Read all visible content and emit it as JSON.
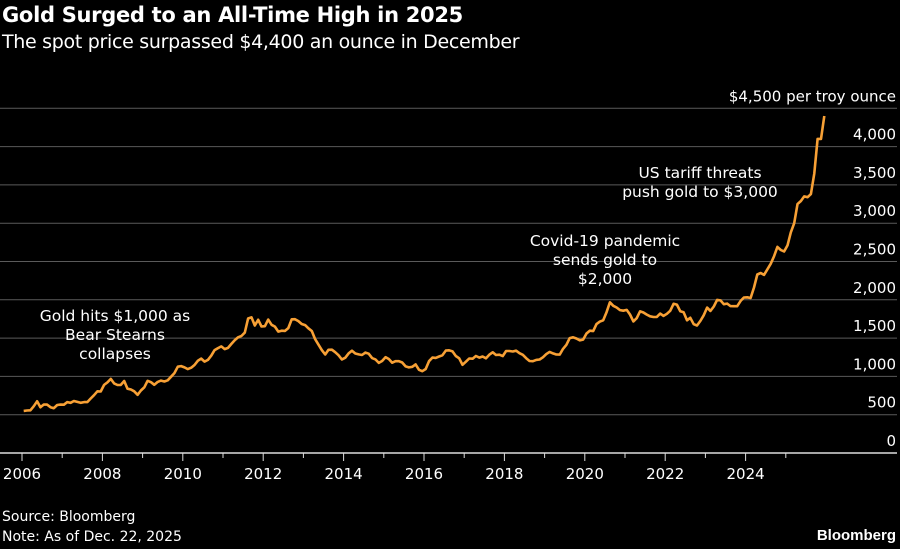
{
  "title": "Gold Surged to an All-Time High in 2025",
  "subtitle": "The spot price surpassed $4,400 an ounce in December",
  "source": "Source: Bloomberg",
  "note": "Note: As of Dec. 22, 2025",
  "logo": "Bloomberg",
  "chart_data": {
    "type": "line",
    "title": "Gold Surged to an All-Time High in 2025",
    "subtitle": "The spot price surpassed $4,400 an ounce in December",
    "ylabel": "$4,500 per troy ounce",
    "ylim": [
      0,
      4500
    ],
    "yticks": [
      0,
      500,
      1000,
      1500,
      2000,
      2500,
      3000,
      3500,
      4000,
      4500
    ],
    "ytick_labels": [
      "0",
      "500",
      "1,000",
      "1,500",
      "2,000",
      "2,500",
      "3,000",
      "3,500",
      "4,000",
      "$4,500 per troy ounce"
    ],
    "xlim": [
      2006,
      2026
    ],
    "xtick_labels": [
      "2006",
      "2008",
      "2010",
      "2012",
      "2014",
      "2016",
      "2018",
      "2020",
      "2022",
      "2024"
    ],
    "grid": true,
    "y_axis_position": "right",
    "line_color": "#f7a035",
    "series": [
      {
        "frequency": "monthly",
        "start": "2006-01",
        "values": [
          550,
          555,
          557,
          610,
          675,
          596,
          633,
          632,
          598,
          585,
          627,
          632,
          631,
          664,
          655,
          679,
          667,
          655,
          665,
          665,
          712,
          754,
          806,
          803,
          889,
          922,
          968,
          909,
          888,
          889,
          940,
          839,
          829,
          806,
          760,
          816,
          858,
          943,
          924,
          890,
          928,
          945,
          934,
          949,
          996,
          1043,
          1127,
          1134,
          1118,
          1095,
          1114,
          1149,
          1205,
          1232,
          1193,
          1215,
          1271,
          1343,
          1370,
          1391,
          1356,
          1372,
          1424,
          1473,
          1510,
          1528,
          1572,
          1756,
          1772,
          1665,
          1739,
          1652,
          1656,
          1742,
          1673,
          1650,
          1585,
          1596,
          1594,
          1630,
          1745,
          1747,
          1722,
          1684,
          1670,
          1628,
          1593,
          1487,
          1414,
          1343,
          1286,
          1347,
          1349,
          1316,
          1275,
          1221,
          1244,
          1300,
          1336,
          1299,
          1287,
          1279,
          1311,
          1296,
          1239,
          1222,
          1176,
          1201,
          1251,
          1227,
          1179,
          1198,
          1199,
          1182,
          1131,
          1117,
          1125,
          1157,
          1086,
          1068,
          1097,
          1199,
          1246,
          1242,
          1260,
          1276,
          1337,
          1341,
          1326,
          1266,
          1236,
          1151,
          1192,
          1234,
          1231,
          1266,
          1246,
          1260,
          1236,
          1283,
          1314,
          1280,
          1283,
          1265,
          1331,
          1331,
          1325,
          1335,
          1303,
          1282,
          1238,
          1201,
          1198,
          1215,
          1221,
          1250,
          1291,
          1320,
          1300,
          1286,
          1284,
          1359,
          1413,
          1500,
          1511,
          1495,
          1471,
          1480,
          1560,
          1597,
          1591,
          1683,
          1716,
          1732,
          1840,
          1968,
          1922,
          1900,
          1866,
          1858,
          1868,
          1808,
          1718,
          1760,
          1850,
          1834,
          1807,
          1785,
          1775,
          1777,
          1820,
          1790,
          1817,
          1856,
          1948,
          1937,
          1850,
          1837,
          1733,
          1765,
          1681,
          1664,
          1725,
          1797,
          1898,
          1855,
          1912,
          1999,
          1992,
          1943,
          1951,
          1918,
          1916,
          1916,
          1985,
          2030,
          2033,
          2023,
          2160,
          2330,
          2350,
          2325,
          2398,
          2470,
          2570,
          2690,
          2650,
          2630,
          2710,
          2880,
          3000,
          3250,
          3290,
          3350,
          3340,
          3380,
          3650,
          4100,
          4100,
          4400
        ]
      }
    ],
    "annotations": [
      {
        "lines": [
          "Gold hits $1,000 as",
          "Bear Stearns",
          "collapses"
        ],
        "x": 2008.2,
        "y": 1000
      },
      {
        "lines": [
          "Covid-19 pandemic",
          "sends gold to",
          "$2,000"
        ],
        "x": 2020.6,
        "y": 2000
      },
      {
        "lines": [
          "US tariff threats",
          "push gold to $3,000"
        ],
        "x": 2025.2,
        "y": 3000
      }
    ]
  }
}
